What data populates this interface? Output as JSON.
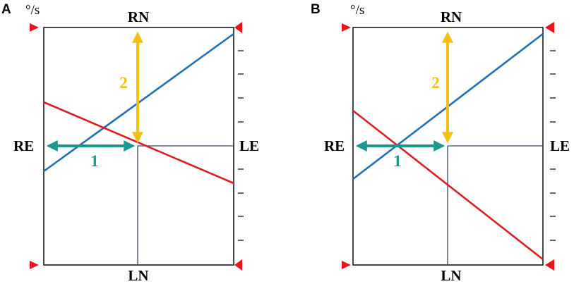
{
  "panels": [
    {
      "letter": "A",
      "unit": "°/s",
      "labels": {
        "top": "RN",
        "bottom": "LN",
        "left": "RE",
        "right": "LE"
      },
      "arrow_labels": {
        "vertical": "2",
        "horizontal": "1"
      }
    },
    {
      "letter": "B",
      "unit": "°/s",
      "labels": {
        "top": "RN",
        "bottom": "LN",
        "left": "RE",
        "right": "LE"
      },
      "arrow_labels": {
        "vertical": "2",
        "horizontal": "1"
      }
    }
  ],
  "colors": {
    "blue_line": "#1f6fb5",
    "red_line": "#d81f26",
    "yellow_arrow": "#f5c016",
    "teal_arrow": "#1a9a8e",
    "marker": "#e8131b",
    "frame": "#1a1a1a",
    "inner_grid": "#3a4a6a"
  }
}
